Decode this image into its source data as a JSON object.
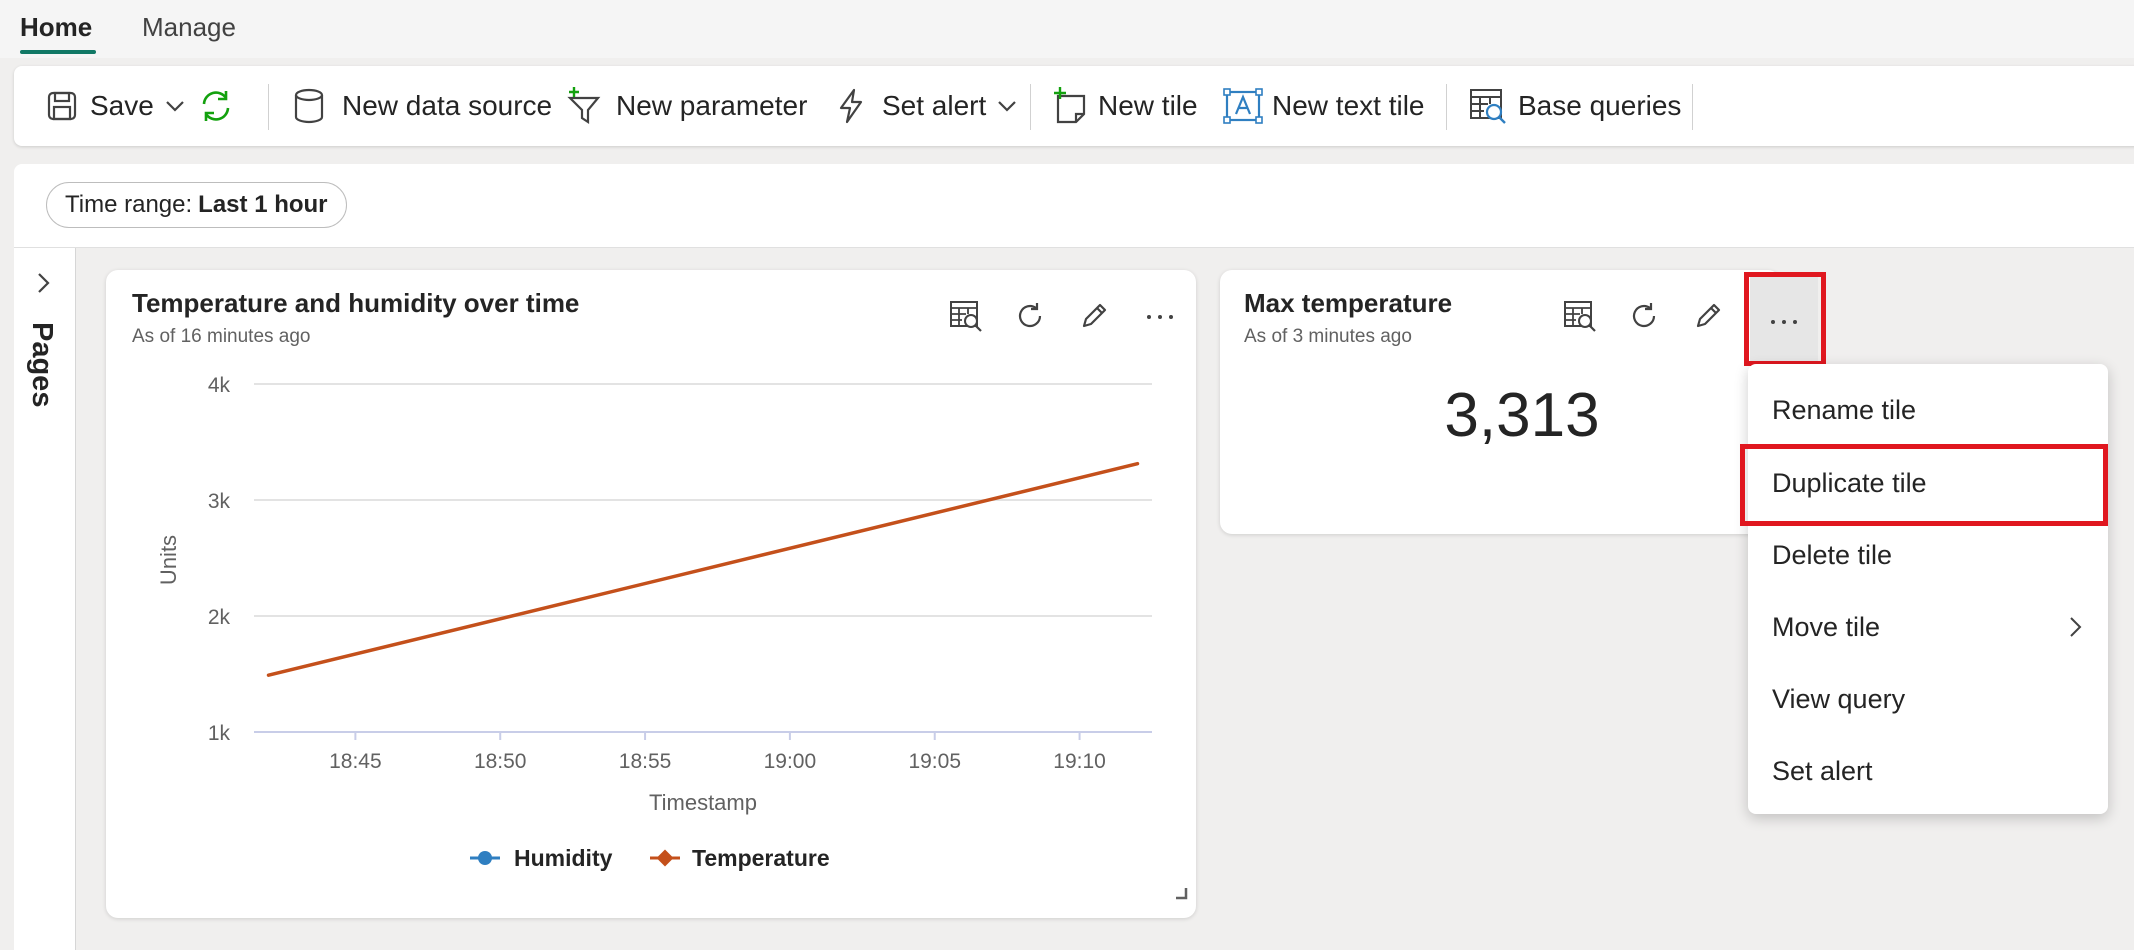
{
  "tabs": [
    {
      "label": "Home",
      "active": true
    },
    {
      "label": "Manage",
      "active": false
    }
  ],
  "ribbon": {
    "save": "Save",
    "new_data_source": "New data source",
    "new_parameter": "New parameter",
    "set_alert": "Set alert",
    "new_tile": "New tile",
    "new_text_tile": "New text tile",
    "base_queries": "Base queries"
  },
  "filter": {
    "prefix": "Time range:",
    "value": "Last 1 hour"
  },
  "pages_label": "Pages",
  "tile1": {
    "title": "Temperature and humidity over time",
    "subtitle": "As of 16 minutes ago"
  },
  "tile2": {
    "title": "Max temperature",
    "subtitle": "As of 3 minutes ago",
    "value": "3,313"
  },
  "menu": {
    "items": [
      "Rename tile",
      "Duplicate tile",
      "Delete tile",
      "Move tile",
      "View query",
      "Set alert"
    ]
  },
  "colors": {
    "accent": "#117865",
    "temperature": "#c4501b",
    "humidity": "#2f7fc1",
    "highlight": "#e0171f"
  },
  "chart_data": {
    "type": "line",
    "xlabel": "Timestamp",
    "ylabel": "Units",
    "ylim": [
      1000,
      4000
    ],
    "yticks": [
      "4k",
      "3k",
      "2k",
      "1k"
    ],
    "yticks_values": [
      4000,
      3000,
      2000,
      1000
    ],
    "xticks": [
      "18:45",
      "18:50",
      "18:55",
      "19:00",
      "19:05",
      "19:10"
    ],
    "xlim": [
      "18:41:30",
      "19:12:30"
    ],
    "grid": true,
    "legend": "bottom",
    "series": [
      {
        "name": "Humidity",
        "x": [],
        "values": []
      },
      {
        "name": "Temperature",
        "x": [
          "18:42",
          "19:12"
        ],
        "values": [
          1490,
          3313
        ]
      }
    ]
  }
}
